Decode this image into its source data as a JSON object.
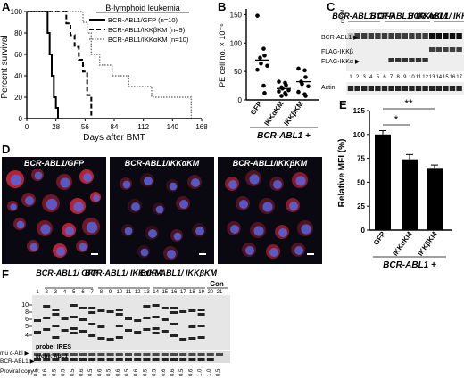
{
  "panels": {
    "A": {
      "letter": "A",
      "legend_title": "B-lymphoid leukemia",
      "legend": [
        {
          "label": "BCR-ABL1/GFP (n=10)",
          "style": "solid"
        },
        {
          "label": "BCR-ABL1/IKKβKM (n=9)",
          "style": "dashed"
        },
        {
          "label": "BCR-ABL1/IKKαKM (n=10)",
          "style": "dotted"
        }
      ],
      "ylabel": "Percent survival",
      "xlabel": "Days after BMT",
      "xticks": [
        "0",
        "28",
        "56",
        "84",
        "112",
        "140",
        "168"
      ],
      "yticks": [
        "0",
        "20",
        "40",
        "60",
        "80",
        "100"
      ]
    },
    "B": {
      "letter": "B",
      "ylabel": "PE cell no. × 10⁻⁶",
      "yticks": [
        "0",
        "50",
        "100",
        "150"
      ],
      "groups": [
        "GFP",
        "IKKαKM",
        "IKKβKM"
      ],
      "footer": "BCR-ABL1 +"
    },
    "C": {
      "letter": "C",
      "headers": [
        "BCR-ABL1/ GFP",
        "BCR-ABL1/ IKKαKM",
        "BCR-ABL1/ IKKβKM"
      ],
      "nl": "nl BM",
      "bands": [
        "BCR-ABL1 ▶",
        "FLAG-IKKβ",
        "FLAG-IKKα ▶",
        "Actin"
      ],
      "lanes": [
        "1",
        "2",
        "3",
        "4",
        "5",
        "6",
        "7",
        "8",
        "9",
        "10",
        "11",
        "12",
        "13",
        "14",
        "15",
        "16",
        "17"
      ]
    },
    "D": {
      "letter": "D",
      "titles": [
        "BCR-ABL1/GFP",
        "BCR-ABL1/IKKαKM",
        "BCR-ABL1/IKKβKM"
      ]
    },
    "E": {
      "letter": "E",
      "ylabel": "Relative MFI (%)",
      "yticks": [
        "0",
        "25",
        "50",
        "75",
        "100",
        "125"
      ],
      "groups": [
        "GFP",
        "IKKαKM",
        "IKKβKM"
      ],
      "sig1": "*",
      "sig2": "**",
      "footer": "BCR-ABL1 +"
    },
    "F": {
      "letter": "F",
      "headers": [
        "BCR-ABL1/ GFP",
        "BCR-ABL1/ IKKαKM",
        "BCR-ABL1/ IKKβKM",
        "Con"
      ],
      "lanes": [
        "1",
        "2",
        "3",
        "4",
        "5",
        "6",
        "7",
        "8",
        "9",
        "10",
        "11",
        "12",
        "13",
        "14",
        "15",
        "16",
        "17",
        "18",
        "19",
        "20",
        "21"
      ],
      "markers": [
        "10",
        "8",
        "6",
        "5",
        "4"
      ],
      "probe_ires": "probe: IRES",
      "probe_abl": "probe: ABL1",
      "row_labels": [
        "mu c-Abl ▶",
        "BCR-ABL1 ▶",
        "Proviral copy #:"
      ],
      "copies": [
        "0.5",
        "0.6",
        "0.5",
        "0.5",
        "0.5",
        "0.6",
        "0.5",
        "0.6",
        "0.5",
        "0.6",
        "0.5",
        "0.6",
        "0.5",
        "0.5",
        "0.6",
        "0.6",
        "0.5",
        "0.6",
        "1.0",
        "1.0",
        "0.5"
      ]
    }
  },
  "chart_data": [
    {
      "type": "line",
      "title": "B-lymphoid leukemia",
      "xlabel": "Days after BMT",
      "ylabel": "Percent survival",
      "xlim": [
        0,
        168
      ],
      "ylim": [
        0,
        100
      ],
      "series": [
        {
          "name": "BCR-ABL1/GFP (n=10)",
          "x": [
            0,
            18,
            20,
            22,
            24,
            26,
            28,
            30
          ],
          "y": [
            100,
            100,
            80,
            60,
            40,
            20,
            10,
            0
          ]
        },
        {
          "name": "BCR-ABL1/IKKβKM (n=9)",
          "x": [
            0,
            34,
            38,
            42,
            46,
            50,
            54,
            58,
            62
          ],
          "y": [
            100,
            100,
            89,
            78,
            67,
            55,
            44,
            22,
            0
          ]
        },
        {
          "name": "BCR-ABL1/IKKαKM (n=10)",
          "x": [
            0,
            50,
            54,
            58,
            62,
            70,
            82,
            98,
            120,
            158
          ],
          "y": [
            100,
            100,
            90,
            80,
            60,
            50,
            40,
            30,
            20,
            0
          ]
        }
      ]
    },
    {
      "type": "scatter",
      "ylabel": "PE cell no. × 10⁻⁶",
      "categories": [
        "GFP",
        "IKKαKM",
        "IKKβKM"
      ],
      "ylim": [
        0,
        160
      ],
      "series": [
        {
          "values": [
            148,
            90,
            78,
            74,
            64,
            60,
            53,
            25,
            12
          ]
        },
        {
          "values": [
            32,
            30,
            26,
            22,
            20,
            17,
            15,
            12,
            9,
            7
          ]
        },
        {
          "values": [
            55,
            52,
            40,
            32,
            28,
            24,
            14,
            10,
            7
          ]
        }
      ],
      "means": [
        70,
        20,
        32
      ]
    },
    {
      "type": "bar",
      "ylabel": "Relative MFI (%)",
      "categories": [
        "GFP",
        "IKKαKM",
        "IKKβKM"
      ],
      "values": [
        100,
        74,
        65
      ],
      "errors": [
        4,
        5,
        3
      ],
      "ylim": [
        0,
        125
      ]
    }
  ]
}
